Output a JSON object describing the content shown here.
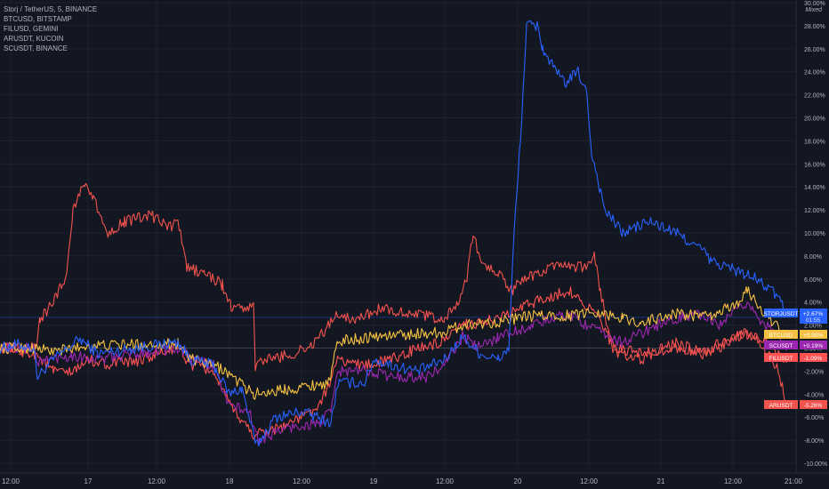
{
  "legend": {
    "items": [
      "Storj / TetherUS, 5, BINANCE",
      "BTCUSD, BITSTAMP",
      "FILUSD, GEMINI",
      "ARUSDT, KUCOIN",
      "SCUSDT, BINANCE"
    ]
  },
  "scale_mode": "Mixed",
  "chart_data": {
    "type": "line",
    "x_ticks": [
      "12:00",
      "17",
      "12:00",
      "18",
      "12:00",
      "19",
      "12:00",
      "20",
      "12:00",
      "21",
      "12:00",
      "21:00"
    ],
    "y_ticks": [
      "30.00%",
      "28.00%",
      "26.00%",
      "24.00%",
      "22.00%",
      "20.00%",
      "18.00%",
      "16.00%",
      "14.00%",
      "12.00%",
      "10.00%",
      "8.00%",
      "6.00%",
      "4.00%",
      "2.00%",
      "0.00%",
      "-2.00%",
      "-4.00%",
      "-6.00%",
      "-8.00%",
      "-10.00%"
    ],
    "ylim": [
      -10.5,
      30.2
    ],
    "series": [
      {
        "name": "STORJUSDT",
        "color": "#2962ff",
        "last_label": "+2.67%",
        "sub_label": "01:55",
        "points": [
          [
            0,
            0
          ],
          [
            20,
            0.3
          ],
          [
            38,
            0
          ],
          [
            42,
            -2.5
          ],
          [
            60,
            -1
          ],
          [
            90,
            0.8
          ],
          [
            110,
            -0.5
          ],
          [
            150,
            0
          ],
          [
            200,
            0.5
          ],
          [
            215,
            -1
          ],
          [
            240,
            -1.5
          ],
          [
            258,
            -4
          ],
          [
            272,
            -3.5
          ],
          [
            288,
            -8.5
          ],
          [
            310,
            -6
          ],
          [
            340,
            -5.5
          ],
          [
            372,
            -6.5
          ],
          [
            380,
            -3
          ],
          [
            410,
            -3
          ],
          [
            420,
            -1
          ],
          [
            440,
            -1.5
          ],
          [
            470,
            -2
          ],
          [
            500,
            -1
          ],
          [
            520,
            1
          ],
          [
            540,
            -0.5
          ],
          [
            560,
            -1
          ],
          [
            572,
            0
          ],
          [
            578,
            10
          ],
          [
            585,
            18
          ],
          [
            592,
            28
          ],
          [
            605,
            28
          ],
          [
            610,
            26
          ],
          [
            625,
            24
          ],
          [
            635,
            23
          ],
          [
            650,
            24
          ],
          [
            660,
            22
          ],
          [
            665,
            17
          ],
          [
            680,
            12
          ],
          [
            700,
            10
          ],
          [
            730,
            11
          ],
          [
            760,
            10
          ],
          [
            790,
            8.5
          ],
          [
            800,
            7.5
          ],
          [
            820,
            7
          ],
          [
            850,
            6
          ],
          [
            875,
            4.5
          ],
          [
            885,
            2.67
          ]
        ]
      },
      {
        "name": "BTCUSD",
        "color": "#f5c142",
        "last_label": "+0.90%",
        "points": [
          [
            0,
            0
          ],
          [
            40,
            0
          ],
          [
            60,
            -0.3
          ],
          [
            100,
            0.2
          ],
          [
            150,
            0.3
          ],
          [
            200,
            0.4
          ],
          [
            215,
            -1
          ],
          [
            250,
            -1.8
          ],
          [
            285,
            -4
          ],
          [
            320,
            -3.6
          ],
          [
            370,
            -3
          ],
          [
            380,
            0.6
          ],
          [
            420,
            1
          ],
          [
            500,
            1.4
          ],
          [
            520,
            2
          ],
          [
            560,
            2.3
          ],
          [
            600,
            2.8
          ],
          [
            640,
            2.8
          ],
          [
            668,
            3.2
          ],
          [
            700,
            2.6
          ],
          [
            720,
            2.2
          ],
          [
            760,
            3
          ],
          [
            800,
            2.7
          ],
          [
            830,
            4
          ],
          [
            840,
            5
          ],
          [
            860,
            3
          ],
          [
            885,
            0.9
          ]
        ]
      },
      {
        "name": "SCUSDT",
        "color": "#9c27b0",
        "last_label": "+0.19%",
        "points": [
          [
            0,
            0
          ],
          [
            38,
            0
          ],
          [
            42,
            -1.2
          ],
          [
            80,
            -0.6
          ],
          [
            110,
            -1
          ],
          [
            150,
            -0.5
          ],
          [
            200,
            0
          ],
          [
            215,
            -1
          ],
          [
            240,
            -1.5
          ],
          [
            258,
            -5
          ],
          [
            280,
            -5.5
          ],
          [
            290,
            -8
          ],
          [
            320,
            -7
          ],
          [
            360,
            -6.5
          ],
          [
            372,
            -5.5
          ],
          [
            380,
            -2
          ],
          [
            420,
            -2
          ],
          [
            440,
            -2.5
          ],
          [
            480,
            -2.5
          ],
          [
            500,
            -1.5
          ],
          [
            520,
            1
          ],
          [
            540,
            0
          ],
          [
            560,
            1
          ],
          [
            600,
            2
          ],
          [
            620,
            2.5
          ],
          [
            640,
            3
          ],
          [
            670,
            1.5
          ],
          [
            700,
            0.5
          ],
          [
            740,
            2
          ],
          [
            780,
            3
          ],
          [
            810,
            2
          ],
          [
            840,
            4
          ],
          [
            860,
            2
          ],
          [
            885,
            0.19
          ]
        ]
      },
      {
        "name": "FILUSDT",
        "color": "#ff5252",
        "last_label": "-1.09%",
        "points": [
          [
            0,
            0
          ],
          [
            40,
            -0.5
          ],
          [
            60,
            -2
          ],
          [
            80,
            -2.2
          ],
          [
            100,
            -1
          ],
          [
            120,
            -1.4
          ],
          [
            150,
            -1.2
          ],
          [
            200,
            0
          ],
          [
            215,
            -1.5
          ],
          [
            240,
            -2
          ],
          [
            258,
            -5
          ],
          [
            285,
            -7.5
          ],
          [
            310,
            -7
          ],
          [
            340,
            -6
          ],
          [
            360,
            -5
          ],
          [
            380,
            -1
          ],
          [
            410,
            -1.5
          ],
          [
            440,
            -1
          ],
          [
            470,
            0
          ],
          [
            500,
            0.5
          ],
          [
            520,
            2
          ],
          [
            560,
            2.5
          ],
          [
            600,
            4
          ],
          [
            640,
            5
          ],
          [
            670,
            3
          ],
          [
            690,
            0
          ],
          [
            720,
            -0.5
          ],
          [
            760,
            0
          ],
          [
            790,
            -0.5
          ],
          [
            820,
            1
          ],
          [
            840,
            1.2
          ],
          [
            860,
            0.5
          ],
          [
            885,
            -1.09
          ]
        ]
      },
      {
        "name": "ARUSDT",
        "color": "#f2534d",
        "last_label": "-5.26%",
        "points": [
          [
            0,
            0
          ],
          [
            40,
            0
          ],
          [
            45,
            2.5
          ],
          [
            60,
            4
          ],
          [
            75,
            6.5
          ],
          [
            82,
            12
          ],
          [
            95,
            14.5
          ],
          [
            105,
            13
          ],
          [
            120,
            10
          ],
          [
            140,
            11
          ],
          [
            170,
            11.5
          ],
          [
            190,
            10.5
          ],
          [
            200,
            11
          ],
          [
            210,
            7
          ],
          [
            230,
            6.5
          ],
          [
            250,
            5.5
          ],
          [
            260,
            3.5
          ],
          [
            285,
            3.5
          ],
          [
            287,
            -1.5
          ],
          [
            300,
            -1
          ],
          [
            330,
            -0.5
          ],
          [
            345,
            0
          ],
          [
            360,
            1
          ],
          [
            380,
            3
          ],
          [
            400,
            2.5
          ],
          [
            430,
            3.5
          ],
          [
            460,
            3
          ],
          [
            500,
            2.5
          ],
          [
            515,
            4
          ],
          [
            525,
            6
          ],
          [
            532,
            10
          ],
          [
            540,
            7.5
          ],
          [
            560,
            6.5
          ],
          [
            575,
            5
          ],
          [
            590,
            6
          ],
          [
            620,
            7
          ],
          [
            660,
            7
          ],
          [
            668,
            8
          ],
          [
            675,
            5
          ],
          [
            680,
            3
          ],
          [
            690,
            -0.5
          ],
          [
            720,
            -1
          ],
          [
            760,
            0.5
          ],
          [
            790,
            -0.5
          ],
          [
            820,
            0.5
          ],
          [
            840,
            1.5
          ],
          [
            860,
            0
          ],
          [
            875,
            -2
          ],
          [
            885,
            -5.26
          ]
        ]
      }
    ]
  }
}
